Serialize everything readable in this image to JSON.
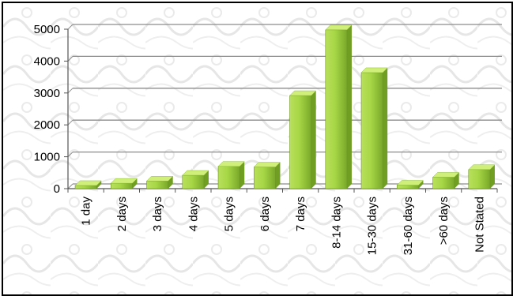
{
  "chart_data": {
    "type": "bar",
    "categories": [
      "1 day",
      "2 days",
      "3 days",
      "4 days",
      "5 days",
      "6 days",
      "7 days",
      "8-14 days",
      "15-30 days",
      "31-60 days",
      ">60 days",
      "Not Stated"
    ],
    "values": [
      100,
      170,
      240,
      420,
      700,
      680,
      2920,
      4980,
      3640,
      110,
      360,
      600
    ],
    "title": "",
    "xlabel": "",
    "ylabel": "",
    "ylim": [
      0,
      5000
    ],
    "yticks": [
      0,
      1000,
      2000,
      3000,
      4000,
      5000
    ],
    "grid": true,
    "legend": "none",
    "colors": {
      "bar_top": "#cfee7a",
      "bar_mid": "#9ccf3c",
      "bar_side": "#6f9e22",
      "gridline": "#8c8c8c",
      "axis": "#555555"
    }
  }
}
